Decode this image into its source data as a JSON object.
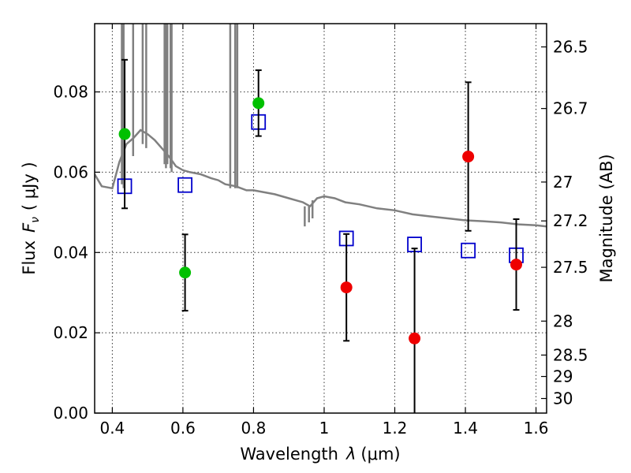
{
  "chart_data": {
    "type": "scatter",
    "xlabel_text": "Wavelength",
    "xlabel_symbol": "λ",
    "xlabel_unit": "(μm)",
    "ylabel_text": "Flux",
    "ylabel_symbol": "F",
    "ylabel_subscript": "ν",
    "ylabel_unit": "( μJy )",
    "y2label": "Magnitude (AB)",
    "xlim": [
      0.35,
      1.63
    ],
    "ylim": [
      0.0,
      0.097
    ],
    "x_ticks": [
      {
        "value": 0.4,
        "label": "0.4"
      },
      {
        "value": 0.6,
        "label": "0.6"
      },
      {
        "value": 0.8,
        "label": "0.8"
      },
      {
        "value": 1.0,
        "label": "1"
      },
      {
        "value": 1.2,
        "label": "1.2"
      },
      {
        "value": 1.4,
        "label": "1.4"
      },
      {
        "value": 1.6,
        "label": "1.6"
      }
    ],
    "y_ticks": [
      {
        "value": 0.0,
        "label": "0.00"
      },
      {
        "value": 0.02,
        "label": "0.02"
      },
      {
        "value": 0.04,
        "label": "0.04"
      },
      {
        "value": 0.06,
        "label": "0.06"
      },
      {
        "value": 0.08,
        "label": "0.08"
      }
    ],
    "y2_ticks": [
      {
        "value": 26.5,
        "label": "26.5"
      },
      {
        "value": 26.7,
        "label": "26.7"
      },
      {
        "value": 27.0,
        "label": "27"
      },
      {
        "value": 27.2,
        "label": "27.2"
      },
      {
        "value": 27.5,
        "label": "27.5"
      },
      {
        "value": 28.0,
        "label": "28"
      },
      {
        "value": 28.5,
        "label": "28.5"
      },
      {
        "value": 29.0,
        "label": "29"
      },
      {
        "value": 30.0,
        "label": "30"
      }
    ],
    "grid": true,
    "colors": {
      "model": "#808080",
      "green": "#00c000",
      "red": "#ee0000",
      "blue": "#0000cc",
      "errorbar": "#000000"
    },
    "model_sed": {
      "x": [
        0.35,
        0.37,
        0.4,
        0.42,
        0.44,
        0.46,
        0.48,
        0.5,
        0.52,
        0.54,
        0.56,
        0.58,
        0.6,
        0.62,
        0.65,
        0.68,
        0.7,
        0.72,
        0.75,
        0.78,
        0.8,
        0.83,
        0.86,
        0.9,
        0.94,
        0.96,
        0.98,
        1.0,
        1.03,
        1.06,
        1.1,
        1.15,
        1.2,
        1.25,
        1.3,
        1.35,
        1.4,
        1.45,
        1.5,
        1.55,
        1.6,
        1.63
      ],
      "y": [
        0.0595,
        0.0565,
        0.056,
        0.0625,
        0.067,
        0.0685,
        0.0705,
        0.0695,
        0.068,
        0.066,
        0.064,
        0.0615,
        0.0605,
        0.06,
        0.0595,
        0.0585,
        0.058,
        0.057,
        0.0565,
        0.0555,
        0.0555,
        0.055,
        0.0545,
        0.0535,
        0.0525,
        0.0515,
        0.0535,
        0.054,
        0.0535,
        0.0525,
        0.052,
        0.051,
        0.0505,
        0.0495,
        0.049,
        0.0485,
        0.048,
        0.0478,
        0.0475,
        0.047,
        0.0468,
        0.0465
      ]
    },
    "spikes": [
      {
        "x": 0.427,
        "y_bottom": 0.057
      },
      {
        "x": 0.432,
        "y_bottom": 0.056
      },
      {
        "x": 0.459,
        "y_bottom": 0.064
      },
      {
        "x": 0.486,
        "y_bottom": 0.067
      },
      {
        "x": 0.496,
        "y_bottom": 0.066
      },
      {
        "x": 0.548,
        "y_bottom": 0.062
      },
      {
        "x": 0.552,
        "y_bottom": 0.061
      },
      {
        "x": 0.556,
        "y_bottom": 0.062
      },
      {
        "x": 0.565,
        "y_bottom": 0.061
      },
      {
        "x": 0.568,
        "y_bottom": 0.06
      },
      {
        "x": 0.734,
        "y_bottom": 0.056
      },
      {
        "x": 0.748,
        "y_bottom": 0.056
      },
      {
        "x": 0.754,
        "y_bottom": 0.056
      }
    ],
    "dips": [
      {
        "x": 0.945,
        "y_top": 0.0515,
        "y_bottom": 0.0465
      },
      {
        "x": 0.957,
        "y_top": 0.0515,
        "y_bottom": 0.0475
      },
      {
        "x": 0.967,
        "y_top": 0.053,
        "y_bottom": 0.0485
      }
    ],
    "observed": [
      {
        "x": 0.435,
        "y": 0.0695,
        "err": 0.0185,
        "color": "green"
      },
      {
        "x": 0.606,
        "y": 0.035,
        "err": 0.0095,
        "color": "green"
      },
      {
        "x": 0.814,
        "y": 0.0772,
        "err": 0.0082,
        "color": "green"
      },
      {
        "x": 1.063,
        "y": 0.0313,
        "err": 0.0133,
        "color": "red"
      },
      {
        "x": 1.256,
        "y": 0.0186,
        "err": 0.0224,
        "color": "red"
      },
      {
        "x": 1.408,
        "y": 0.0639,
        "err": 0.0185,
        "color": "red"
      },
      {
        "x": 1.544,
        "y": 0.037,
        "err": 0.0113,
        "color": "red"
      }
    ],
    "model_photometry": [
      {
        "x": 0.435,
        "y": 0.0565
      },
      {
        "x": 0.606,
        "y": 0.0568
      },
      {
        "x": 0.814,
        "y": 0.0725
      },
      {
        "x": 1.063,
        "y": 0.0435
      },
      {
        "x": 1.256,
        "y": 0.042
      },
      {
        "x": 1.408,
        "y": 0.0405
      },
      {
        "x": 1.544,
        "y": 0.0393
      }
    ]
  }
}
